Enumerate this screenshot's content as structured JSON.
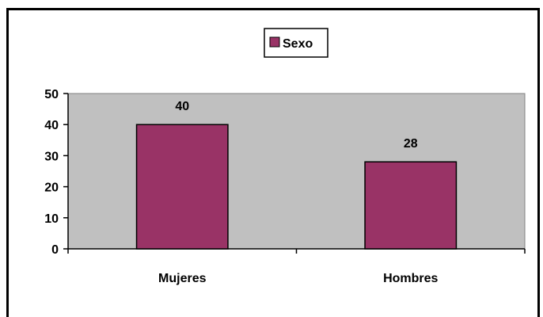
{
  "chart_data": {
    "type": "bar",
    "categories": [
      "Mujeres",
      "Hombres"
    ],
    "series": [
      {
        "name": "Sexo",
        "values": [
          40,
          28
        ],
        "color": "#993366"
      }
    ],
    "title": "",
    "xlabel": "",
    "ylabel": "",
    "ylim": [
      0,
      50
    ],
    "yticks": [
      0,
      10,
      20,
      30,
      40,
      50
    ],
    "grid": false,
    "legend": "top-center",
    "plot_background": "#c0c0c0",
    "data_labels": [
      "40",
      "28"
    ]
  }
}
